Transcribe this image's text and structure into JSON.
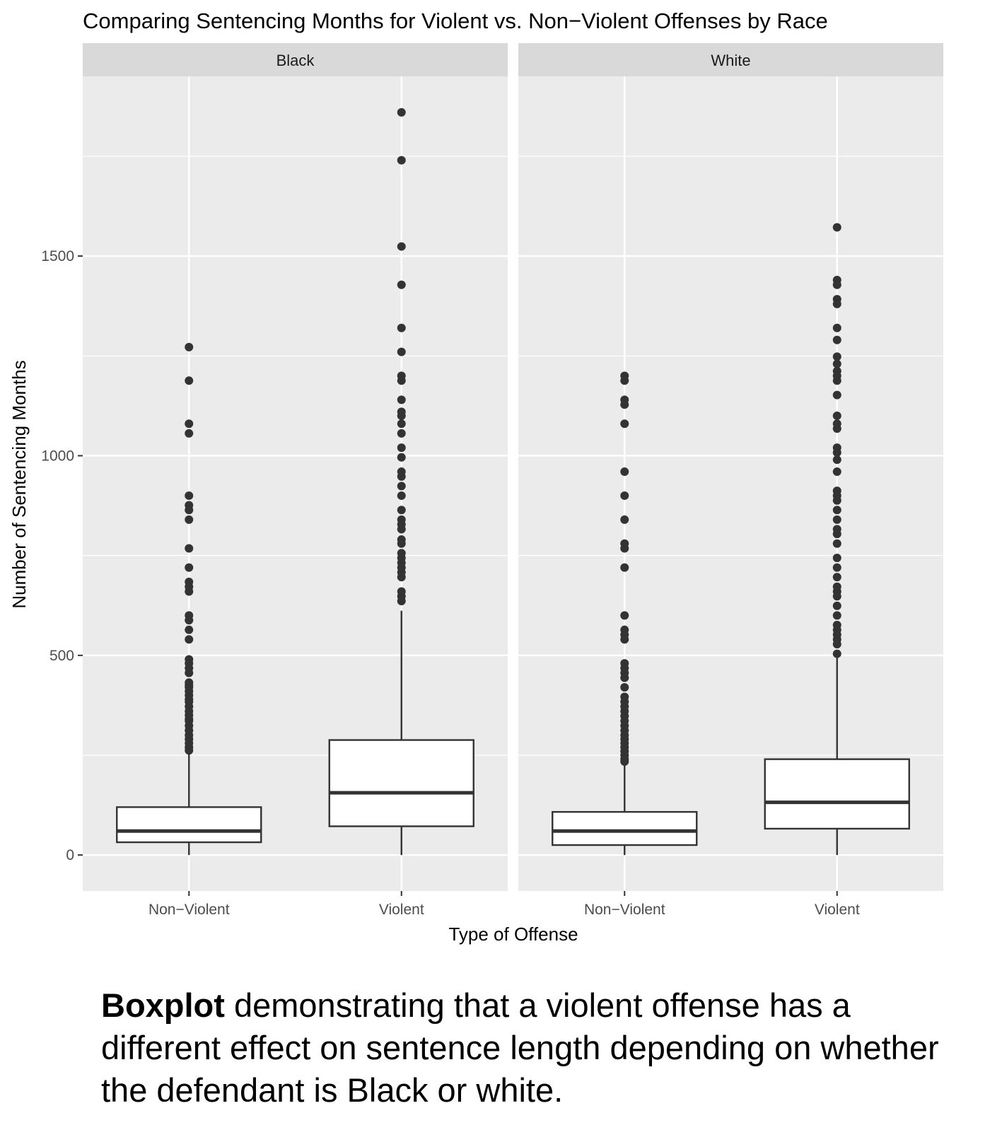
{
  "chart_data": {
    "type": "boxplot",
    "title": "Comparing Sentencing Months for Violent vs. Non−Violent Offenses by Race",
    "xlabel": "Type of Offense",
    "ylabel": "Number of Sentencing Months",
    "ylim": [
      -90,
      1950
    ],
    "y_ticks": [
      0,
      500,
      1000,
      1500
    ],
    "y_tick_labels": [
      "0",
      "500",
      "1000",
      "1500"
    ],
    "y_minor_ticks": [
      250,
      750,
      1250,
      1750
    ],
    "categories": [
      "Non−Violent",
      "Violent"
    ],
    "grid": true,
    "facets": [
      {
        "label": "Black",
        "boxes": [
          {
            "category": "Non−Violent",
            "whisker_low": 0,
            "q1": 32,
            "median": 60,
            "q3": 120,
            "whisker_high": 255,
            "outliers": [
              1272,
              1188,
              1080,
              1056,
              900,
              876,
              864,
              840,
              768,
              720,
              684,
              672,
              660,
              600,
              588,
              564,
              540,
              490,
              480,
              468,
              456,
              432,
              425,
              420,
              410,
              400,
              390,
              384,
              372,
              360,
              350,
              340,
              336,
              324,
              312,
              300,
              290,
              280,
              270,
              262
            ]
          },
          {
            "category": "Violent",
            "whisker_low": 0,
            "q1": 72,
            "median": 156,
            "q3": 288,
            "whisker_high": 612,
            "outliers": [
              1860,
              1740,
              1524,
              1428,
              1320,
              1260,
              1200,
              1188,
              1140,
              1110,
              1100,
              1080,
              1056,
              1020,
              996,
              960,
              948,
              924,
              900,
              864,
              840,
              828,
              816,
              790,
              780,
              756,
              744,
              732,
              720,
              708,
              696,
              660,
              648,
              636
            ]
          }
        ]
      },
      {
        "label": "White",
        "boxes": [
          {
            "category": "Non−Violent",
            "whisker_low": 0,
            "q1": 25,
            "median": 60,
            "q3": 108,
            "whisker_high": 228,
            "outliers": [
              1200,
              1188,
              1140,
              1128,
              1080,
              960,
              900,
              840,
              780,
              768,
              720,
              600,
              564,
              552,
              540,
              480,
              468,
              456,
              444,
              420,
              396,
              384,
              372,
              360,
              348,
              336,
              324,
              312,
              300,
              290,
              280,
              270,
              260,
              250,
              240,
              234
            ]
          },
          {
            "category": "Violent",
            "whisker_low": 0,
            "q1": 66,
            "median": 132,
            "q3": 240,
            "whisker_high": 500,
            "outliers": [
              1572,
              1440,
              1428,
              1392,
              1380,
              1320,
              1290,
              1248,
              1230,
              1212,
              1200,
              1188,
              1152,
              1100,
              1080,
              1068,
              1020,
              1008,
              990,
              960,
              912,
              900,
              888,
              864,
              840,
              816,
              804,
              780,
              744,
              720,
              696,
              672,
              660,
              648,
              624,
              600,
              576,
              564,
              552,
              540,
              528,
              504
            ]
          }
        ]
      }
    ]
  },
  "caption": {
    "bold": "Boxplot",
    "rest": " demonstrating that a violent offense has a different effect on sentence length depending on whether the defendant is Black or white."
  }
}
